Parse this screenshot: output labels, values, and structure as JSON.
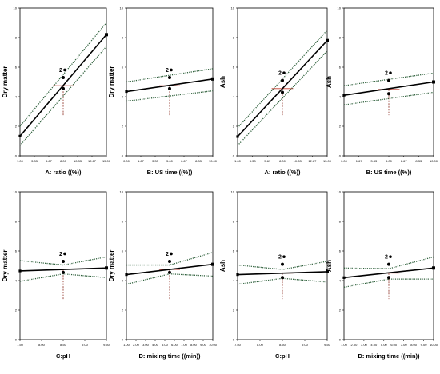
{
  "chart_data": [
    {
      "type": "line",
      "ylabel": "Dry matter",
      "xlabel": "A: ratio ((%))",
      "x_ticks": [
        "1.00",
        "3.33",
        "5.67",
        "8.00",
        "10.33",
        "12.67",
        "15.00"
      ],
      "y_ticks": [
        "0",
        "2",
        "4",
        "6",
        "8",
        "10"
      ],
      "xlim": [
        1,
        15
      ],
      "ylim": [
        0,
        10
      ],
      "series": [
        {
          "role": "fit",
          "x": [
            1,
            15
          ],
          "y": [
            1.33,
            8.2
          ]
        },
        {
          "role": "ci_upper",
          "x": [
            1,
            15
          ],
          "y": [
            2.0,
            9.0
          ]
        },
        {
          "role": "ci_lower",
          "x": [
            1,
            15
          ],
          "y": [
            0.7,
            7.4
          ]
        }
      ],
      "design_points": [
        {
          "x": 8,
          "y": 5.3
        },
        {
          "x": 8,
          "y": 4.55
        }
      ],
      "center_point_label": "2",
      "crosshair": {
        "x": 8,
        "y": 4.75
      }
    },
    {
      "type": "line",
      "ylabel": "Dry matter",
      "xlabel": "B: US time ((%))",
      "x_ticks": [
        "0.00",
        "1.67",
        "3.33",
        "5.00",
        "6.67",
        "8.33",
        "10.00"
      ],
      "y_ticks": [
        "0",
        "2",
        "4",
        "6",
        "8",
        "10"
      ],
      "xlim": [
        0,
        10
      ],
      "ylim": [
        0,
        10
      ],
      "series": [
        {
          "role": "fit",
          "x": [
            0,
            10
          ],
          "y": [
            4.35,
            5.2
          ]
        },
        {
          "role": "ci_upper",
          "x": [
            0,
            10
          ],
          "y": [
            5.0,
            5.9
          ]
        },
        {
          "role": "ci_lower",
          "x": [
            0,
            10
          ],
          "y": [
            3.7,
            4.4
          ]
        }
      ],
      "design_points": [
        {
          "x": 5,
          "y": 5.3
        },
        {
          "x": 5,
          "y": 4.55
        }
      ],
      "center_point_label": "2",
      "crosshair": {
        "x": 5,
        "y": 4.75
      }
    },
    {
      "type": "line",
      "ylabel": "Ash",
      "xlabel": "A: ratio ((%))",
      "x_ticks": [
        "1.00",
        "3.33",
        "5.67",
        "8.00",
        "10.33",
        "12.67",
        "15.00"
      ],
      "y_ticks": [
        "0",
        "2",
        "4",
        "6",
        "8",
        "10"
      ],
      "xlim": [
        1,
        15
      ],
      "ylim": [
        0,
        10
      ],
      "series": [
        {
          "role": "fit",
          "x": [
            1,
            15
          ],
          "y": [
            1.3,
            7.8
          ]
        },
        {
          "role": "ci_upper",
          "x": [
            1,
            15
          ],
          "y": [
            1.9,
            8.5
          ]
        },
        {
          "role": "ci_lower",
          "x": [
            1,
            15
          ],
          "y": [
            0.7,
            7.1
          ]
        }
      ],
      "design_points": [
        {
          "x": 8,
          "y": 5.1
        },
        {
          "x": 8,
          "y": 4.3
        }
      ],
      "center_point_label": "2",
      "crosshair": {
        "x": 8,
        "y": 4.55
      }
    },
    {
      "type": "line",
      "ylabel": "Ash",
      "xlabel": "B: US time ((%))",
      "x_ticks": [
        "0.00",
        "1.67",
        "3.33",
        "5.00",
        "6.67",
        "8.33",
        "10.00"
      ],
      "y_ticks": [
        "0",
        "2",
        "4",
        "6",
        "8",
        "10"
      ],
      "xlim": [
        0,
        10
      ],
      "ylim": [
        0,
        10
      ],
      "series": [
        {
          "role": "fit",
          "x": [
            0,
            10
          ],
          "y": [
            4.1,
            5.0
          ]
        },
        {
          "role": "ci_upper",
          "x": [
            0,
            10
          ],
          "y": [
            4.75,
            5.6
          ]
        },
        {
          "role": "ci_lower",
          "x": [
            0,
            10
          ],
          "y": [
            3.45,
            4.3
          ]
        }
      ],
      "design_points": [
        {
          "x": 5,
          "y": 5.1
        },
        {
          "x": 5,
          "y": 4.2
        }
      ],
      "center_point_label": "2",
      "crosshair": {
        "x": 5,
        "y": 4.5
      }
    },
    {
      "type": "line",
      "ylabel": "Dry matter",
      "xlabel": "C:pH",
      "x_ticks": [
        "7.50",
        "8.00",
        "8.50",
        "9.00",
        "9.50"
      ],
      "y_ticks": [
        "0",
        "2",
        "4",
        "6",
        "8",
        "10"
      ],
      "xlim": [
        7.5,
        9.5
      ],
      "ylim": [
        0,
        10
      ],
      "series": [
        {
          "role": "fit",
          "x": [
            7.5,
            9.5
          ],
          "y": [
            4.65,
            4.85
          ]
        },
        {
          "role": "ci_upper",
          "x": [
            7.5,
            8.5,
            9.5
          ],
          "y": [
            5.35,
            5.05,
            5.6
          ]
        },
        {
          "role": "ci_lower",
          "x": [
            7.5,
            8.5,
            9.5
          ],
          "y": [
            3.95,
            4.45,
            4.2
          ]
        }
      ],
      "design_points": [
        {
          "x": 8.5,
          "y": 5.3
        },
        {
          "x": 8.5,
          "y": 4.55
        }
      ],
      "center_point_label": "2",
      "crosshair": {
        "x": 8.5,
        "y": 4.75
      }
    },
    {
      "type": "line",
      "ylabel": "Dry matter",
      "xlabel": "D: mixing time ((min))",
      "x_ticks": [
        "1.00",
        "2.00",
        "3.00",
        "4.00",
        "5.00",
        "6.00",
        "7.00",
        "8.00",
        "9.00",
        "10.00"
      ],
      "y_ticks": [
        "0",
        "2",
        "4",
        "6",
        "8",
        "10"
      ],
      "xlim": [
        1,
        10
      ],
      "ylim": [
        0,
        10
      ],
      "series": [
        {
          "role": "fit",
          "x": [
            1,
            10
          ],
          "y": [
            4.4,
            5.1
          ]
        },
        {
          "role": "ci_upper",
          "x": [
            1,
            5.5,
            10
          ],
          "y": [
            5.05,
            5.05,
            5.9
          ]
        },
        {
          "role": "ci_lower",
          "x": [
            1,
            5.5,
            10
          ],
          "y": [
            3.75,
            4.45,
            4.3
          ]
        }
      ],
      "design_points": [
        {
          "x": 5.5,
          "y": 5.3
        },
        {
          "x": 5.5,
          "y": 4.55
        }
      ],
      "center_point_label": "2",
      "crosshair": {
        "x": 5.5,
        "y": 4.75
      }
    },
    {
      "type": "line",
      "ylabel": "Ash",
      "xlabel": "C:pH",
      "x_ticks": [
        "7.50",
        "8.00",
        "8.50",
        "9.00",
        "9.50"
      ],
      "y_ticks": [
        "0",
        "2",
        "4",
        "6",
        "8",
        "10"
      ],
      "xlim": [
        7.5,
        9.5
      ],
      "ylim": [
        0,
        10
      ],
      "series": [
        {
          "role": "fit",
          "x": [
            7.5,
            9.5
          ],
          "y": [
            4.4,
            4.6
          ]
        },
        {
          "role": "ci_upper",
          "x": [
            7.5,
            8.5,
            9.5
          ],
          "y": [
            5.05,
            4.75,
            5.3
          ]
        },
        {
          "role": "ci_lower",
          "x": [
            7.5,
            8.5,
            9.5
          ],
          "y": [
            3.75,
            4.15,
            3.9
          ]
        }
      ],
      "design_points": [
        {
          "x": 8.5,
          "y": 5.1
        },
        {
          "x": 8.5,
          "y": 4.2
        }
      ],
      "center_point_label": "2",
      "crosshair": {
        "x": 8.5,
        "y": 4.5
      }
    },
    {
      "type": "line",
      "ylabel": "Ash",
      "xlabel": "D: mixing time ((min))",
      "x_ticks": [
        "1.00",
        "2.00",
        "3.00",
        "4.00",
        "5.00",
        "6.00",
        "7.00",
        "8.00",
        "9.00",
        "10.00"
      ],
      "y_ticks": [
        "0",
        "2",
        "4",
        "6",
        "8",
        "10"
      ],
      "xlim": [
        1,
        10
      ],
      "ylim": [
        0,
        10
      ],
      "series": [
        {
          "role": "fit",
          "x": [
            1,
            10
          ],
          "y": [
            4.2,
            4.85
          ]
        },
        {
          "role": "ci_upper",
          "x": [
            1,
            5.5,
            10
          ],
          "y": [
            4.85,
            4.8,
            5.6
          ]
        },
        {
          "role": "ci_lower",
          "x": [
            1,
            5.5,
            10
          ],
          "y": [
            3.55,
            4.1,
            4.1
          ]
        }
      ],
      "design_points": [
        {
          "x": 5.5,
          "y": 5.1
        },
        {
          "x": 5.5,
          "y": 4.2
        }
      ],
      "center_point_label": "2",
      "crosshair": {
        "x": 5.5,
        "y": 4.5
      }
    }
  ],
  "colors": {
    "fit": "#000000",
    "ci": "#2d5f3a",
    "crosshair_h": "#c0392b",
    "crosshair_v": "#8b2a1e",
    "axis": "#000000",
    "background": "#ffffff"
  }
}
